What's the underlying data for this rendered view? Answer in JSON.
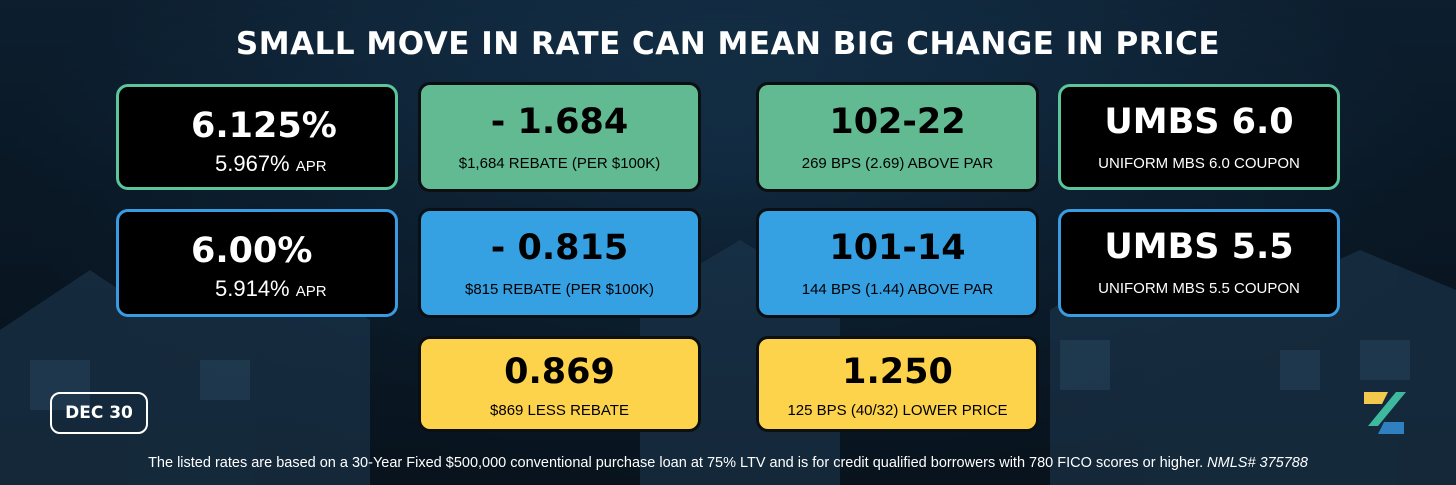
{
  "title": "SMALL MOVE IN RATE CAN MEAN BIG CHANGE IN PRICE",
  "rows": [
    {
      "rate": "6.125%",
      "apr_value": "5.967%",
      "apr_label": "APR",
      "rebate_value": "- 1.684",
      "rebate_desc": "$1,684 REBATE (PER $100K)",
      "price_value": "102-22",
      "price_desc": "269 BPS (2.69) ABOVE PAR",
      "coupon_value": "UMBS 6.0",
      "coupon_desc": "UNIFORM MBS 6.0 COUPON"
    },
    {
      "rate": "6.00%",
      "apr_value": "5.914%",
      "apr_label": "APR",
      "rebate_value": "- 0.815",
      "rebate_desc": "$815 REBATE (PER $100K)",
      "price_value": "101-14",
      "price_desc": "144 BPS (1.44) ABOVE PAR",
      "coupon_value": "UMBS 5.5",
      "coupon_desc": "UNIFORM MBS 5.5 COUPON"
    }
  ],
  "difference": {
    "rebate_value": "0.869",
    "rebate_desc": "$869 LESS REBATE",
    "price_value": "1.250",
    "price_desc": "125 BPS (40/32) LOWER PRICE"
  },
  "date_badge": "DEC 30",
  "footer_text": "The listed rates are based on a 30-Year Fixed $500,000 conventional purchase loan at 75% LTV and is for credit qualified borrowers with 780 FICO scores or higher.",
  "footer_nmls": "NMLS# 375788",
  "colors": {
    "green": "#62ba92",
    "blue": "#35a0e2",
    "yellow": "#fcd34b",
    "green_border": "#5cc59a",
    "blue_border": "#3a9be0"
  },
  "logo_icon": "brand-logo-icon"
}
